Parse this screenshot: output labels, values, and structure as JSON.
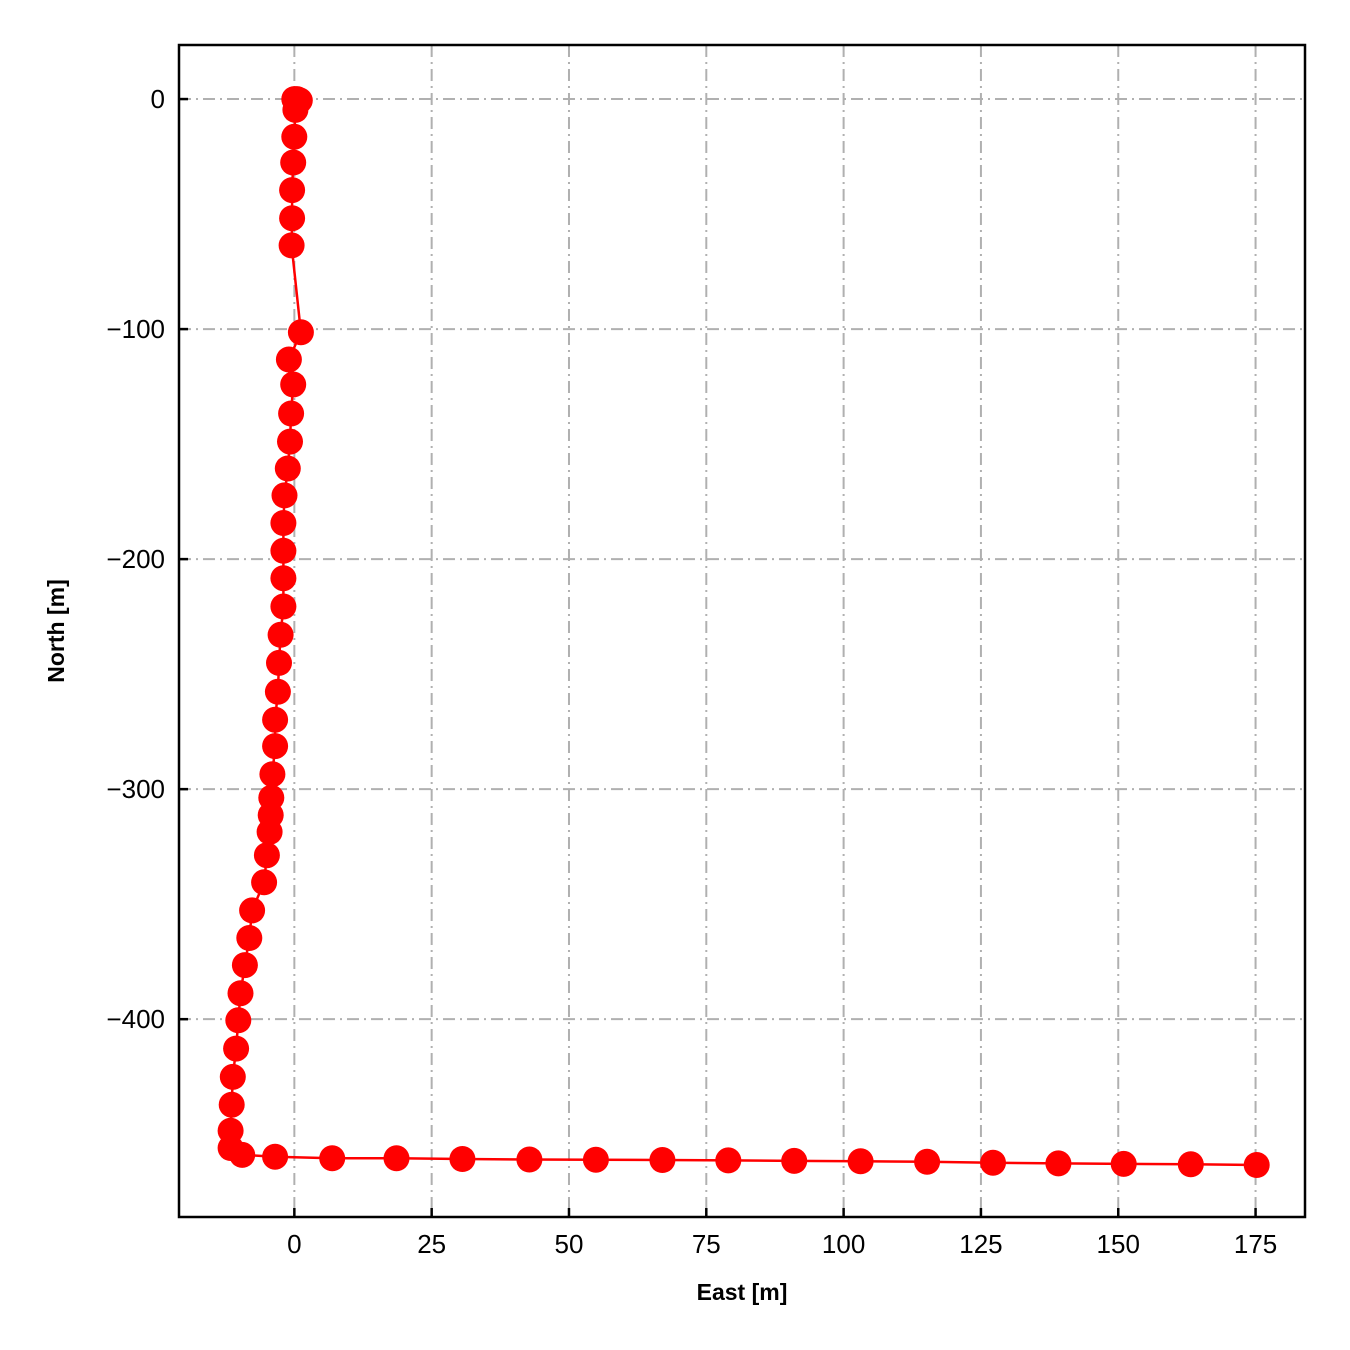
{
  "chart_data": {
    "type": "line",
    "title": "",
    "xlabel": "East [m]",
    "ylabel": "North [m]",
    "xlim": [
      -21,
      184
    ],
    "ylim": [
      -486,
      23.5
    ],
    "xticks": [
      0,
      25,
      50,
      75,
      100,
      125,
      150,
      175
    ],
    "yticks": [
      0,
      -100,
      -200,
      -300,
      -400
    ],
    "xtick_labels": [
      "0",
      "25",
      "50",
      "75",
      "100",
      "125",
      "150",
      "175"
    ],
    "ytick_labels": [
      "0",
      "−100",
      "−200",
      "−300",
      "−400"
    ],
    "grid": true,
    "legend": "none",
    "colors": {
      "series": "#ff0000",
      "grid": "#b0b0b0",
      "axes": "#000000"
    },
    "series": [
      {
        "marker": "circle",
        "x": [
          0,
          0.5,
          1.0,
          0.2,
          0,
          -0.2,
          -0.4,
          -0.4,
          -0.5,
          1.2,
          -1.0,
          -0.2,
          -0.6,
          -0.8,
          -1.2,
          -1.8,
          -2.0,
          -2.0,
          -2.0,
          -2.0,
          -2.5,
          -2.8,
          -3.0,
          -3.5,
          -3.5,
          -4.0,
          -4.2,
          -4.3,
          -4.5,
          -5.0,
          -5.5,
          -7.7,
          -8.2,
          -9.0,
          -9.8,
          -10.2,
          -10.6,
          -11.2,
          -11.4,
          -11.6,
          -11.6,
          -9.5,
          -3.5,
          6.9,
          18.6,
          30.6,
          42.8,
          54.9,
          67.0,
          79.0,
          91.0,
          103.1,
          115.2,
          127.2,
          139.1,
          151.0,
          163.2,
          175.2
        ],
        "y": [
          0,
          0,
          -0.6,
          -4.7,
          -16.4,
          -27.6,
          -39.6,
          -51.8,
          -63.6,
          -101.4,
          -113.2,
          -124.1,
          -136.7,
          -148.9,
          -160.6,
          -172.3,
          -184.3,
          -196.4,
          -208.3,
          -220.6,
          -232.9,
          -245.1,
          -257.7,
          -269.8,
          -281.3,
          -293.5,
          -303.7,
          -311.3,
          -318.6,
          -328.7,
          -340.5,
          -352.7,
          -364.7,
          -376.5,
          -388.7,
          -400.5,
          -412.8,
          -425.1,
          -437.2,
          -448.5,
          -456.0,
          -459.0,
          -459.8,
          -460.5,
          -460.5,
          -460.8,
          -461.0,
          -461.1,
          -461.2,
          -461.4,
          -461.6,
          -461.8,
          -462.0,
          -462.4,
          -462.7,
          -462.9,
          -463.1,
          -463.4
        ]
      }
    ]
  }
}
